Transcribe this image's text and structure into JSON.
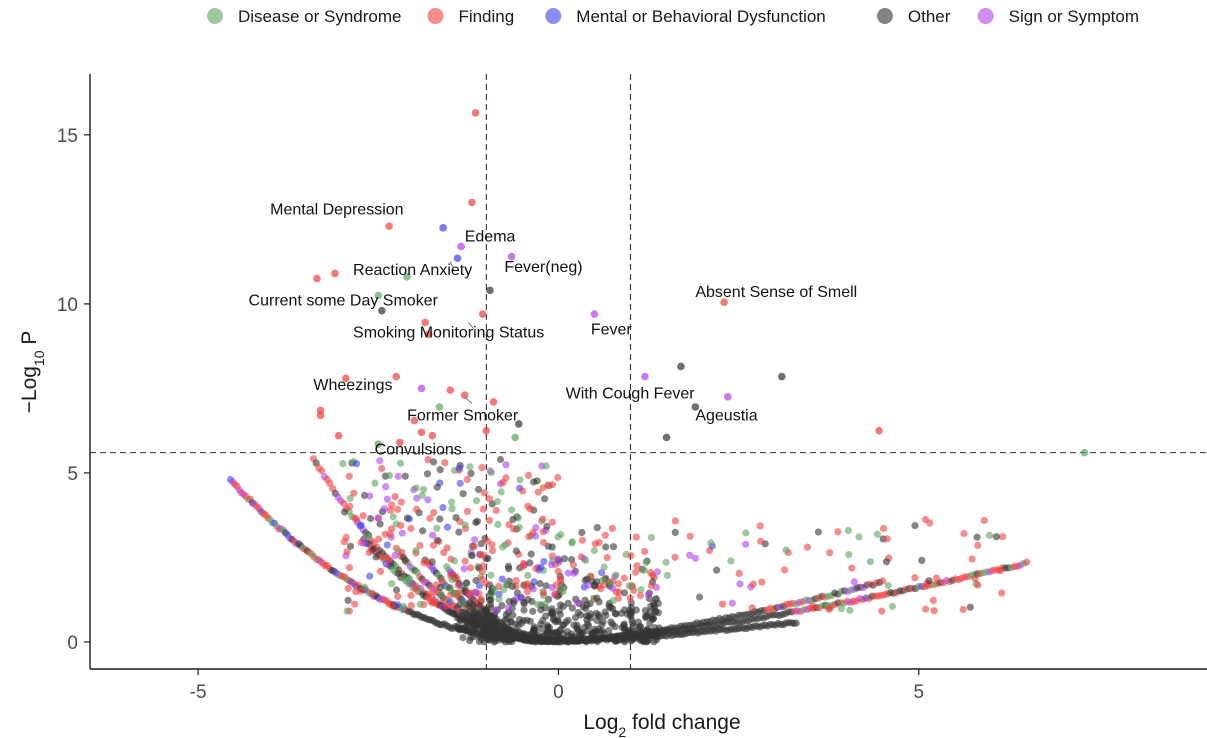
{
  "chart_data": {
    "type": "scatter",
    "title": "",
    "xlabel": {
      "base": "Log",
      "sub": "2",
      "rest": " fold change"
    },
    "ylabel": {
      "minus": "−",
      "base": "Log",
      "sub": "10",
      "rest": " P"
    },
    "xlim": [
      -6.5,
      9
    ],
    "ylim": [
      -0.8,
      16.8
    ],
    "x_ticks": [
      -5,
      0,
      5
    ],
    "y_ticks": [
      0,
      5,
      10,
      15
    ],
    "x_tick_labels": [
      "-5",
      "0",
      "5"
    ],
    "y_tick_labels": [
      "0",
      "5",
      "10",
      "15"
    ],
    "thresholds": {
      "x": [
        -1,
        1
      ],
      "y": 5.6
    },
    "grid": false,
    "legend_position": "top",
    "colors": {
      "Disease or Syndrome": "#5fa35f",
      "Finding": "#ee4040",
      "Mental or Behavioral Dysfunction": "#4040ee",
      "Other": "#333333",
      "Sign or Symptom": "#b040ee"
    },
    "legend": [
      {
        "label": "Disease or Syndrome",
        "color": "#5fa35f"
      },
      {
        "label": "Finding",
        "color": "#ee4040"
      },
      {
        "label": "Mental or Behavioral Dysfunction",
        "color": "#4040ee"
      },
      {
        "label": "Other",
        "color": "#333333"
      },
      {
        "label": "Sign or Symptom",
        "color": "#b040ee"
      }
    ],
    "highlighted_points": [
      {
        "x": -1.15,
        "y": 15.65,
        "category": "Finding"
      },
      {
        "x": -1.2,
        "y": 13.0,
        "category": "Finding"
      },
      {
        "x": -2.35,
        "y": 12.3,
        "category": "Finding"
      },
      {
        "x": -1.6,
        "y": 12.25,
        "category": "Mental or Behavioral Dysfunction"
      },
      {
        "x": -1.35,
        "y": 11.7,
        "category": "Sign or Symptom"
      },
      {
        "x": -1.4,
        "y": 11.35,
        "category": "Mental or Behavioral Dysfunction"
      },
      {
        "x": -0.65,
        "y": 11.4,
        "category": "Sign or Symptom"
      },
      {
        "x": -3.35,
        "y": 10.75,
        "category": "Finding"
      },
      {
        "x": -3.1,
        "y": 10.9,
        "category": "Finding"
      },
      {
        "x": -2.1,
        "y": 10.8,
        "category": "Disease or Syndrome"
      },
      {
        "x": -0.95,
        "y": 10.4,
        "category": "Other"
      },
      {
        "x": -2.5,
        "y": 10.25,
        "category": "Disease or Syndrome"
      },
      {
        "x": -2.45,
        "y": 9.8,
        "category": "Other"
      },
      {
        "x": -1.85,
        "y": 9.45,
        "category": "Finding"
      },
      {
        "x": -1.05,
        "y": 9.7,
        "category": "Finding"
      },
      {
        "x": 0.5,
        "y": 9.7,
        "category": "Sign or Symptom"
      },
      {
        "x": 2.3,
        "y": 10.05,
        "category": "Finding"
      },
      {
        "x": -1.8,
        "y": 9.1,
        "category": "Finding"
      },
      {
        "x": -2.95,
        "y": 7.8,
        "category": "Finding"
      },
      {
        "x": -2.25,
        "y": 7.85,
        "category": "Finding"
      },
      {
        "x": -1.9,
        "y": 7.5,
        "category": "Sign or Symptom"
      },
      {
        "x": -1.5,
        "y": 7.45,
        "category": "Finding"
      },
      {
        "x": -1.3,
        "y": 7.3,
        "category": "Finding"
      },
      {
        "x": -0.9,
        "y": 7.1,
        "category": "Finding"
      },
      {
        "x": 1.2,
        "y": 7.85,
        "category": "Sign or Symptom"
      },
      {
        "x": 1.7,
        "y": 8.15,
        "category": "Other"
      },
      {
        "x": 3.1,
        "y": 7.85,
        "category": "Other"
      },
      {
        "x": 2.35,
        "y": 7.25,
        "category": "Sign or Symptom"
      },
      {
        "x": 1.9,
        "y": 6.95,
        "category": "Other"
      },
      {
        "x": -3.3,
        "y": 6.85,
        "category": "Finding"
      },
      {
        "x": -3.3,
        "y": 6.7,
        "category": "Finding"
      },
      {
        "x": -2.0,
        "y": 6.55,
        "category": "Finding"
      },
      {
        "x": -1.65,
        "y": 6.95,
        "category": "Disease or Syndrome"
      },
      {
        "x": -0.55,
        "y": 6.45,
        "category": "Other"
      },
      {
        "x": -1.9,
        "y": 6.2,
        "category": "Finding"
      },
      {
        "x": -1.75,
        "y": 6.1,
        "category": "Finding"
      },
      {
        "x": -3.05,
        "y": 6.1,
        "category": "Finding"
      },
      {
        "x": -0.6,
        "y": 6.05,
        "category": "Disease or Syndrome"
      },
      {
        "x": -2.5,
        "y": 5.85,
        "category": "Disease or Syndrome"
      },
      {
        "x": -2.2,
        "y": 5.9,
        "category": "Finding"
      },
      {
        "x": -1.0,
        "y": 6.25,
        "category": "Finding"
      },
      {
        "x": 1.5,
        "y": 6.05,
        "category": "Other"
      },
      {
        "x": 4.45,
        "y": 6.25,
        "category": "Finding"
      },
      {
        "x": 7.3,
        "y": 5.6,
        "category": "Disease or Syndrome"
      }
    ],
    "annotations": [
      {
        "label": "Mental Depression",
        "x": -4.0,
        "y": 12.65,
        "anchor": "start"
      },
      {
        "label": "Edema",
        "x": -1.3,
        "y": 11.85,
        "anchor": "start"
      },
      {
        "label": "Fever(neg)",
        "x": -0.75,
        "y": 10.95,
        "anchor": "start"
      },
      {
        "label": "Reaction Anxiety",
        "x": -2.85,
        "y": 10.85,
        "anchor": "start"
      },
      {
        "label": "Current some Day Smoker",
        "x": -4.3,
        "y": 9.95,
        "anchor": "start"
      },
      {
        "label": "Absent Sense of Smell",
        "x": 1.9,
        "y": 10.2,
        "anchor": "start"
      },
      {
        "label": "Smoking Monitoring Status",
        "x": -2.85,
        "y": 9.0,
        "anchor": "start"
      },
      {
        "label": "Fever",
        "x": 0.45,
        "y": 9.1,
        "anchor": "start"
      },
      {
        "label": "Wheezings",
        "x": -3.4,
        "y": 7.45,
        "anchor": "start"
      },
      {
        "label": "With Cough Fever",
        "x": 0.1,
        "y": 7.2,
        "anchor": "start"
      },
      {
        "label": "Ageustia",
        "x": 1.9,
        "y": 6.55,
        "anchor": "start"
      },
      {
        "label": "Former Smoker",
        "x": -2.1,
        "y": 6.55,
        "anchor": "start"
      },
      {
        "label": "Convulsions",
        "x": -2.55,
        "y": 5.55,
        "anchor": "start"
      }
    ]
  }
}
